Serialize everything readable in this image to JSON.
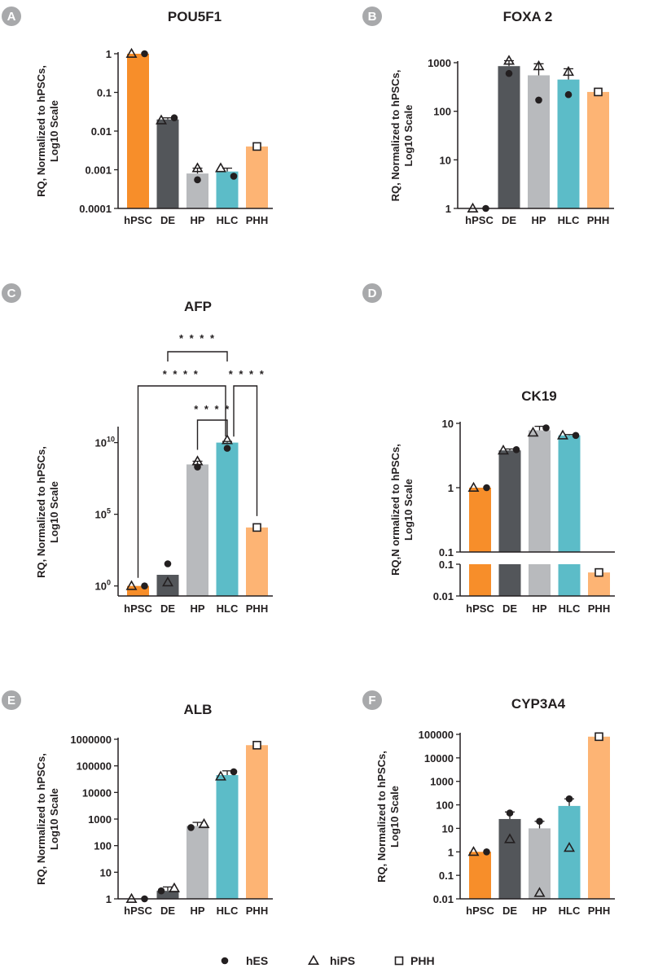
{
  "colors": {
    "hPSC": "#f78e2a",
    "DE": "#53565a",
    "HP": "#b8babd",
    "HLC": "#5cbcc8",
    "PHH": "#fdb474",
    "badge": "#a8a9ab",
    "ink": "#231f20"
  },
  "legend": [
    {
      "marker": "circle",
      "label": "hES"
    },
    {
      "marker": "triangle",
      "label": "hiPS"
    },
    {
      "marker": "square",
      "label": "PHH"
    }
  ],
  "chart_data": [
    {
      "panel": "A",
      "type": "bar",
      "title": "POU5F1",
      "scale": "log",
      "ylabel": [
        "RQ, Normalized to hPSCs,",
        "Log10 Scale"
      ],
      "ylim": [
        0.0001,
        1
      ],
      "yticks": [
        0.0001,
        0.001,
        0.01,
        0.1,
        1
      ],
      "ytick_labels": [
        "0.0001",
        "0.001",
        "0.01",
        "0.1",
        "1"
      ],
      "categories": [
        "hPSC",
        "DE",
        "HP",
        "HLC",
        "PHH"
      ],
      "values": [
        1,
        0.02,
        0.0008,
        0.0009,
        0.004
      ],
      "errors": [
        null,
        0.022,
        0.0011,
        0.0011,
        null
      ],
      "points": [
        {
          "cat": "hPSC",
          "marker": "triangle",
          "value": 1
        },
        {
          "cat": "hPSC",
          "marker": "circle",
          "value": 1
        },
        {
          "cat": "DE",
          "marker": "triangle",
          "value": 0.019
        },
        {
          "cat": "DE",
          "marker": "circle",
          "value": 0.022
        },
        {
          "cat": "HP",
          "marker": "triangle",
          "value": 0.0011
        },
        {
          "cat": "HP",
          "marker": "circle",
          "value": 0.00055
        },
        {
          "cat": "HLC",
          "marker": "triangle",
          "value": 0.0011
        },
        {
          "cat": "HLC",
          "marker": "circle",
          "value": 0.00068
        },
        {
          "cat": "PHH",
          "marker": "square",
          "value": 0.004
        }
      ]
    },
    {
      "panel": "B",
      "type": "bar",
      "title": "FOXA 2",
      "scale": "log",
      "ylabel": [
        "RQ, Normalized to hPSCs,",
        "Log10 Scale"
      ],
      "ylim": [
        1,
        1000
      ],
      "yticks": [
        1,
        10,
        100,
        1000
      ],
      "ytick_labels": [
        "1",
        "10",
        "100",
        "1000"
      ],
      "categories": [
        "hPSC",
        "DE",
        "HP",
        "HLC",
        "PHH"
      ],
      "values": [
        1,
        850,
        550,
        450,
        250
      ],
      "errors": [
        null,
        1100,
        950,
        750,
        null
      ],
      "points": [
        {
          "cat": "hPSC",
          "marker": "triangle",
          "value": 1
        },
        {
          "cat": "hPSC",
          "marker": "circle",
          "value": 1
        },
        {
          "cat": "DE",
          "marker": "triangle",
          "value": 1100
        },
        {
          "cat": "DE",
          "marker": "circle",
          "value": 600
        },
        {
          "cat": "HP",
          "marker": "triangle",
          "value": 850
        },
        {
          "cat": "HP",
          "marker": "circle",
          "value": 170
        },
        {
          "cat": "HLC",
          "marker": "triangle",
          "value": 650
        },
        {
          "cat": "HLC",
          "marker": "circle",
          "value": 220
        },
        {
          "cat": "PHH",
          "marker": "square",
          "value": 250
        }
      ]
    },
    {
      "panel": "C",
      "type": "bar",
      "title": "AFP",
      "scale": "log",
      "ylabel": [
        "RQ, Normalized to hPSCs,",
        "Log10 Scale"
      ],
      "ylim": [
        0.2,
        100000000000
      ],
      "yticks": [
        1,
        100000,
        10000000000
      ],
      "ytick_labels": [
        "10",
        "10",
        "10"
      ],
      "ytick_exponents": [
        "0",
        "5",
        "10"
      ],
      "categories": [
        "hPSC",
        "DE",
        "HP",
        "HLC",
        "PHH"
      ],
      "values": [
        1,
        6,
        300000000,
        10000000000,
        12000
      ],
      "errors": [
        null,
        null,
        500000000,
        12000000000,
        null
      ],
      "points": [
        {
          "cat": "hPSC",
          "marker": "triangle",
          "value": 1
        },
        {
          "cat": "hPSC",
          "marker": "circle",
          "value": 1
        },
        {
          "cat": "DE",
          "marker": "circle",
          "value": 35
        },
        {
          "cat": "DE",
          "marker": "triangle",
          "value": 1.8
        },
        {
          "cat": "HP",
          "marker": "triangle",
          "value": 500000000
        },
        {
          "cat": "HP",
          "marker": "circle",
          "value": 200000000
        },
        {
          "cat": "HLC",
          "marker": "triangle",
          "value": 15000000000
        },
        {
          "cat": "HLC",
          "marker": "circle",
          "value": 4000000000
        },
        {
          "cat": "PHH",
          "marker": "square",
          "value": 12000
        }
      ],
      "significance": [
        {
          "from": "HLC",
          "to": "HP",
          "label": "* * * *"
        },
        {
          "from": "HLC",
          "to": "PHH",
          "label": "* * * *"
        },
        {
          "from": "HLC",
          "to": "hPSC",
          "label": "* * * *"
        },
        {
          "from": "HLC",
          "to": "DE",
          "label": "* * * *"
        }
      ]
    },
    {
      "panel": "D",
      "type": "bar",
      "title": "CK19",
      "scale": "log",
      "broken_axis": true,
      "ylabel": [
        "RQ,N ormalized to hPSCs,",
        "Log10 Scale"
      ],
      "ylim_upper": [
        0.1,
        10
      ],
      "ylim_lower": [
        0.01,
        0.1
      ],
      "yticks_upper": [
        0.1,
        1,
        10
      ],
      "ytick_labels_upper": [
        "0.1",
        "1",
        "10"
      ],
      "yticks_lower": [
        0.01,
        0.1
      ],
      "ytick_labels_lower": [
        "0.01",
        "0.1"
      ],
      "categories": [
        "hPSC",
        "DE",
        "HP",
        "HLC",
        "PHH"
      ],
      "values": [
        1,
        3.8,
        7.8,
        6.5,
        0.055
      ],
      "errors": [
        null,
        4,
        9,
        6.7,
        null
      ],
      "points": [
        {
          "cat": "hPSC",
          "marker": "triangle",
          "value": 1
        },
        {
          "cat": "hPSC",
          "marker": "circle",
          "value": 1
        },
        {
          "cat": "DE",
          "marker": "triangle",
          "value": 3.8
        },
        {
          "cat": "DE",
          "marker": "circle",
          "value": 3.9
        },
        {
          "cat": "HP",
          "marker": "triangle",
          "value": 7.2
        },
        {
          "cat": "HP",
          "marker": "circle",
          "value": 8.5
        },
        {
          "cat": "HLC",
          "marker": "triangle",
          "value": 6.5
        },
        {
          "cat": "HLC",
          "marker": "circle",
          "value": 6.5
        },
        {
          "cat": "PHH",
          "marker": "square",
          "value": 0.055
        }
      ]
    },
    {
      "panel": "E",
      "type": "bar",
      "title": "ALB",
      "scale": "log",
      "ylabel": [
        "RQ, Normalized to hPSCs,",
        "Log10 Scale"
      ],
      "ylim": [
        1,
        1000000
      ],
      "yticks": [
        1,
        10,
        100,
        1000,
        10000,
        100000,
        1000000
      ],
      "ytick_labels": [
        "1",
        "10",
        "100",
        "1000",
        "10000",
        "100000",
        "1000000"
      ],
      "categories": [
        "hPSC",
        "DE",
        "HP",
        "HLC",
        "PHH"
      ],
      "values": [
        1,
        2,
        550,
        45000,
        600000
      ],
      "errors": [
        null,
        2.8,
        750,
        65000,
        null
      ],
      "points": [
        {
          "cat": "hPSC",
          "marker": "triangle",
          "value": 1
        },
        {
          "cat": "hPSC",
          "marker": "circle",
          "value": 1
        },
        {
          "cat": "DE",
          "marker": "circle",
          "value": 2
        },
        {
          "cat": "DE",
          "marker": "triangle",
          "value": 2.5
        },
        {
          "cat": "HP",
          "marker": "circle",
          "value": 480
        },
        {
          "cat": "HP",
          "marker": "triangle",
          "value": 650
        },
        {
          "cat": "HLC",
          "marker": "triangle",
          "value": 40000
        },
        {
          "cat": "HLC",
          "marker": "circle",
          "value": 60000
        },
        {
          "cat": "PHH",
          "marker": "square",
          "value": 600000
        }
      ]
    },
    {
      "panel": "F",
      "type": "bar",
      "title": "CYP3A4",
      "scale": "log",
      "ylabel": [
        "RQ, Normalized to hPSCs,",
        "Log10 Scale"
      ],
      "ylim": [
        0.01,
        100000
      ],
      "yticks": [
        0.01,
        0.1,
        1,
        10,
        100,
        1000,
        10000,
        100000
      ],
      "ytick_labels": [
        "0.01",
        "0.1",
        "1",
        "10",
        "100",
        "1000",
        "10000",
        "100000"
      ],
      "categories": [
        "hPSC",
        "DE",
        "HP",
        "HLC",
        "PHH"
      ],
      "values": [
        1,
        25,
        10,
        90,
        80000
      ],
      "errors": [
        null,
        50,
        20,
        180,
        null
      ],
      "points": [
        {
          "cat": "hPSC",
          "marker": "triangle",
          "value": 1
        },
        {
          "cat": "hPSC",
          "marker": "circle",
          "value": 1
        },
        {
          "cat": "DE",
          "marker": "circle",
          "value": 45
        },
        {
          "cat": "DE",
          "marker": "triangle",
          "value": 3.5
        },
        {
          "cat": "HP",
          "marker": "circle",
          "value": 20
        },
        {
          "cat": "HP",
          "marker": "triangle",
          "value": 0.018
        },
        {
          "cat": "HLC",
          "marker": "circle",
          "value": 180
        },
        {
          "cat": "HLC",
          "marker": "triangle",
          "value": 1.5
        },
        {
          "cat": "PHH",
          "marker": "square",
          "value": 80000
        }
      ]
    }
  ]
}
